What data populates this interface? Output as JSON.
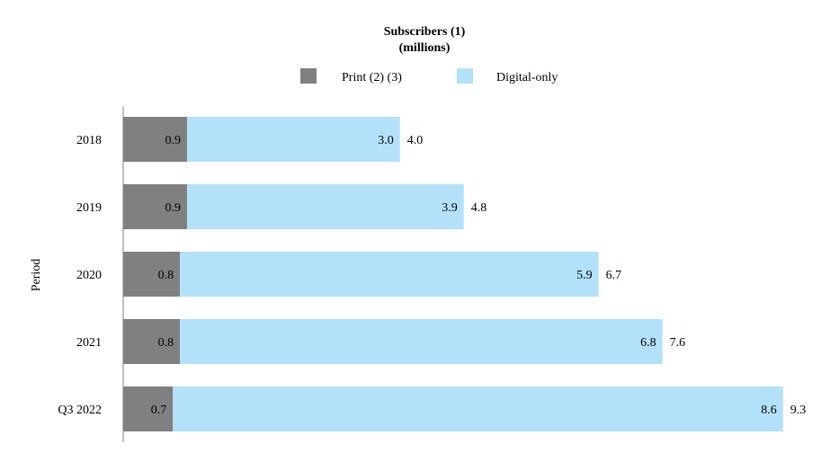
{
  "chart_data": {
    "type": "bar",
    "orientation": "horizontal",
    "stacked": true,
    "title": "Subscribers (1)",
    "subtitle": "(millions)",
    "ylabel": "Period",
    "xlabel": "",
    "categories": [
      "2018",
      "2019",
      "2020",
      "2021",
      "Q3 2022"
    ],
    "series": [
      {
        "name": "Print (2) (3)",
        "color": "#808080",
        "values": [
          0.9,
          0.9,
          0.8,
          0.8,
          0.7
        ]
      },
      {
        "name": "Digital-only",
        "color": "#b3e1fa",
        "values": [
          3.0,
          3.9,
          5.9,
          6.8,
          8.6
        ]
      }
    ],
    "totals": [
      4.0,
      4.8,
      6.7,
      7.6,
      9.3
    ],
    "xlim": [
      0,
      9.3
    ],
    "legend_position": "top",
    "grid": false
  }
}
